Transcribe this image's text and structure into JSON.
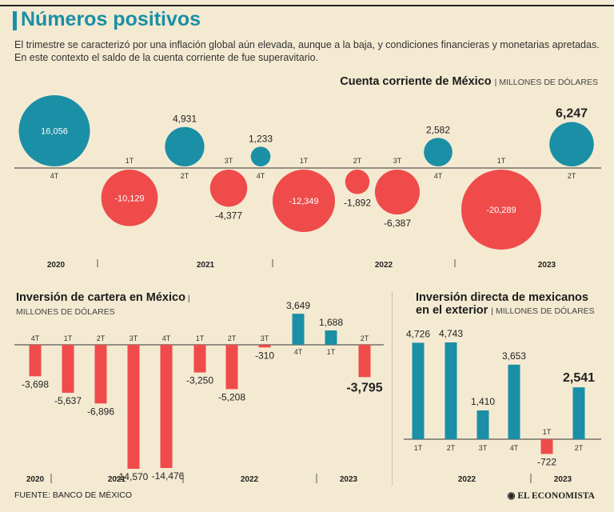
{
  "header": {
    "title": "Números positivos",
    "subtitle": "El trimestre se caracterizó por una inflación global aún elevada, aunque a la baja, y condiciones financieras y monetarias apretadas. En este contexto el saldo de la cuenta corriente de fue superavitario."
  },
  "colors": {
    "positive": "#1a8fa5",
    "negative": "#ef4b4b"
  },
  "chart_data": [
    {
      "type": "bubble",
      "title": "Cuenta corriente de México",
      "unit": "MILLONES DE DÓLARES",
      "points": [
        {
          "quarter": "4T",
          "year": "2020",
          "value": 16056
        },
        {
          "quarter": "1T",
          "year": "2021",
          "value": -10129
        },
        {
          "quarter": "2T",
          "year": "2021",
          "value": 4931
        },
        {
          "quarter": "3T",
          "year": "2021",
          "value": -4377
        },
        {
          "quarter": "4T",
          "year": "2021",
          "value": 1233
        },
        {
          "quarter": "1T",
          "year": "2022",
          "value": -12349
        },
        {
          "quarter": "2T",
          "year": "2022",
          "value": -1892
        },
        {
          "quarter": "3T",
          "year": "2022",
          "value": -6387
        },
        {
          "quarter": "4T",
          "year": "2022",
          "value": 2582
        },
        {
          "quarter": "1T",
          "year": "2023",
          "value": -20289
        },
        {
          "quarter": "2T",
          "year": "2023",
          "value": 6247
        }
      ],
      "labels": [
        "16,056",
        "-10,129",
        "4,931",
        "-4,377",
        "1,233",
        "-12,349",
        "-1,892",
        "-6,387",
        "2,582",
        "-20,289",
        "6,247"
      ],
      "years": [
        "2020",
        "2021",
        "2022",
        "2023"
      ]
    },
    {
      "type": "bar",
      "title": "Inversión de cartera en México",
      "unit": "MILLONES DE DÓLARES",
      "categories": [
        "4T",
        "1T",
        "2T",
        "3T",
        "4T",
        "1T",
        "2T",
        "3T",
        "4T",
        "1T",
        "2T"
      ],
      "values": [
        -3698,
        -5637,
        -6896,
        -14570,
        -14476,
        -3250,
        -5208,
        -310,
        3649,
        1688,
        -3795
      ],
      "labels": [
        "-3,698",
        "-5,637",
        "-6,896",
        "-14,570",
        "-14,476",
        "-3,250",
        "-5,208",
        "-310",
        "3,649",
        "1,688",
        "-3,795"
      ],
      "years": [
        "2020",
        "2021",
        "2022",
        "2023"
      ]
    },
    {
      "type": "bar",
      "title_line1": "Inversión directa de mexicanos",
      "title_line2": "en el exterior",
      "unit": "MILLONES DE DÓLARES",
      "categories": [
        "1T",
        "2T",
        "3T",
        "4T",
        "1T",
        "2T"
      ],
      "values": [
        4726,
        4743,
        1410,
        3653,
        -722,
        2541
      ],
      "labels": [
        "4,726",
        "4,743",
        "1,410",
        "3,653",
        "-722",
        "2,541"
      ],
      "years": [
        "2022",
        "2023"
      ]
    }
  ],
  "footer": {
    "source": "FUENTE: BANCO DE MÉXICO",
    "brand": "EL ECONOMISTA"
  }
}
